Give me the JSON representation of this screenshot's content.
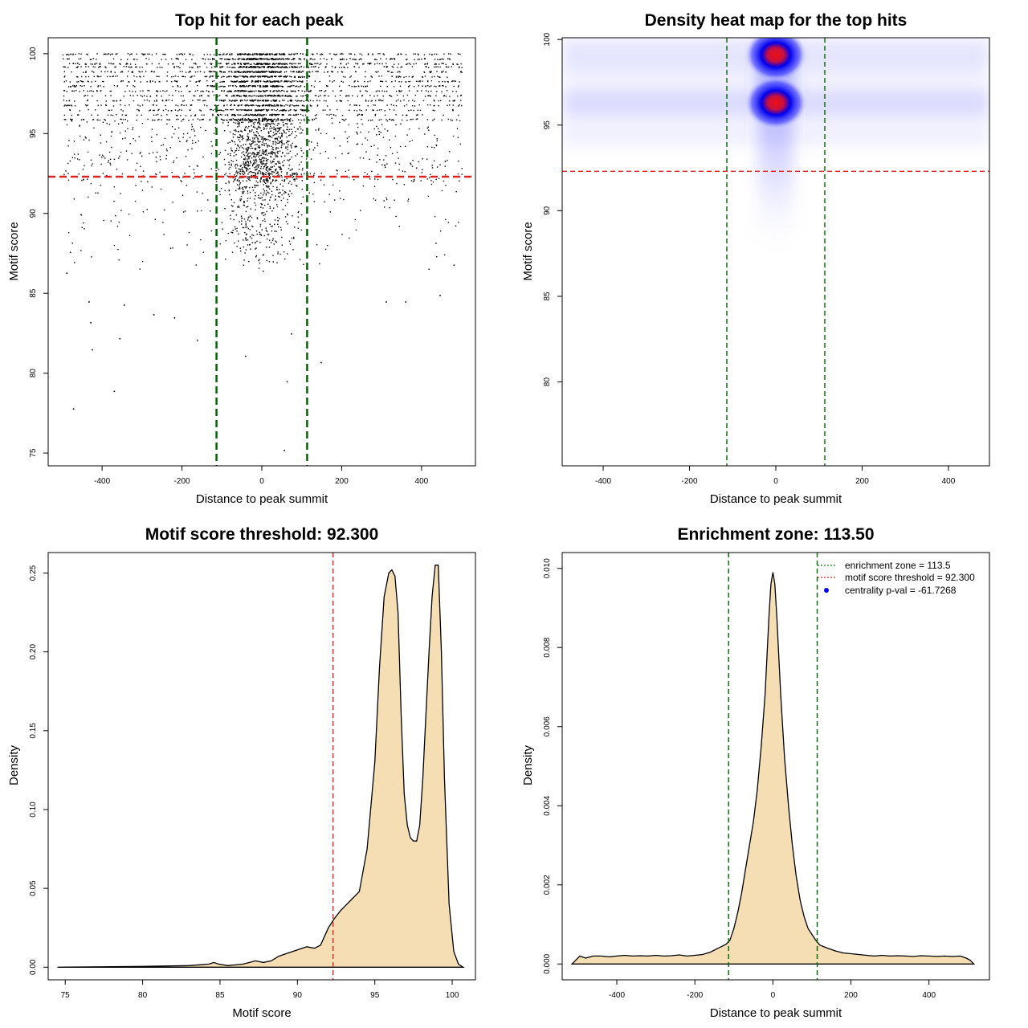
{
  "colors": {
    "vline": "#006400",
    "threshold": "#dd2222",
    "fill": "#f5deb3",
    "heat_low": "#ffffff",
    "heat_mid": "#0000ee",
    "heat_high": "#ee0000"
  },
  "chart_data": [
    {
      "id": "scatter",
      "type": "scatter",
      "title": "Top hit for each peak",
      "xlabel": "Distance to peak summit",
      "ylabel": "Motif score",
      "xlim": [
        -535,
        535
      ],
      "ylim": [
        74.2,
        101.0
      ],
      "xticks": [
        -400,
        -200,
        0,
        200,
        400
      ],
      "yticks": [
        75,
        80,
        85,
        90,
        95,
        100
      ],
      "vlines": [
        -113.5,
        113.5
      ],
      "hline": 92.3,
      "x_range": [
        -500,
        500
      ],
      "discrete_score_rows": [
        100,
        99.7,
        99.4,
        99.2,
        98.9,
        98.6,
        98.3,
        98.0,
        97.7,
        97.4,
        97.1,
        96.8,
        96.5,
        96.2,
        95.9
      ],
      "outlier_points": [
        {
          "x": -473,
          "y": 77.8
        },
        {
          "x": -371,
          "y": 78.9
        },
        {
          "x": 55,
          "y": 75.2
        },
        {
          "x": 62,
          "y": 79.5
        },
        {
          "x": -426,
          "y": 81.5
        },
        {
          "x": -357,
          "y": 82.2
        },
        {
          "x": -163,
          "y": 82.1
        },
        {
          "x": 73,
          "y": 82.5
        },
        {
          "x": 147,
          "y": 80.7
        },
        {
          "x": -42,
          "y": 81.1
        },
        {
          "x": -434,
          "y": 84.5
        },
        {
          "x": -346,
          "y": 84.3
        },
        {
          "x": -220,
          "y": 83.5
        },
        {
          "x": 310,
          "y": 84.5
        },
        {
          "x": 359,
          "y": 84.5
        },
        {
          "x": 445,
          "y": 84.9
        },
        {
          "x": -430,
          "y": 83.2
        },
        {
          "x": -272,
          "y": 83.7
        },
        {
          "x": -481,
          "y": 87.6
        },
        {
          "x": -490,
          "y": 86.3
        },
        {
          "x": 480,
          "y": 86.8
        }
      ]
    },
    {
      "id": "heatmap",
      "type": "heatmap",
      "title": "Density heat map for the top hits",
      "xlabel": "Distance to peak summit",
      "ylabel": "Motif score",
      "xlim": [
        -495,
        495
      ],
      "ylim": [
        75.1,
        100.1
      ],
      "xticks": [
        -400,
        -200,
        0,
        200,
        400
      ],
      "yticks": [
        80,
        85,
        90,
        95,
        100
      ],
      "vlines": [
        -113.5,
        113.5
      ],
      "hline": 92.3,
      "hotspots": [
        {
          "x": 0,
          "y": 99.1
        },
        {
          "x": 0,
          "y": 96.3
        }
      ]
    },
    {
      "id": "score-density",
      "type": "area",
      "title": "Motif score threshold: 92.300",
      "xlabel": "Motif score",
      "ylabel": "Density",
      "xlim": [
        73.9,
        101.5
      ],
      "ylim": [
        -0.008,
        0.263
      ],
      "xticks": [
        75,
        80,
        85,
        90,
        95,
        100
      ],
      "yticks": [
        0.0,
        0.05,
        0.1,
        0.15,
        0.2,
        0.25
      ],
      "ytick_labels": [
        "0.00",
        "0.05",
        "0.10",
        "0.15",
        "0.20",
        "0.25"
      ],
      "vline": 92.3,
      "x": [
        74.5,
        80,
        83,
        84.3,
        84.6,
        84.9,
        85.5,
        86.5,
        87.3,
        87.8,
        88.3,
        88.8,
        89.4,
        90.0,
        90.6,
        91.1,
        91.5,
        92.0,
        92.4,
        92.8,
        93.2,
        93.6,
        94.0,
        94.5,
        95.0,
        95.3,
        95.6,
        95.9,
        96.1,
        96.3,
        96.5,
        96.7,
        96.9,
        97.1,
        97.3,
        97.5,
        97.7,
        97.9,
        98.1,
        98.3,
        98.5,
        98.7,
        98.9,
        99.1,
        99.3,
        99.5,
        99.8,
        100.1,
        100.4,
        100.7
      ],
      "y": [
        0.0,
        0.0005,
        0.001,
        0.002,
        0.003,
        0.002,
        0.001,
        0.002,
        0.004,
        0.003,
        0.004,
        0.007,
        0.009,
        0.011,
        0.013,
        0.012,
        0.014,
        0.025,
        0.031,
        0.036,
        0.04,
        0.044,
        0.048,
        0.075,
        0.13,
        0.19,
        0.235,
        0.25,
        0.252,
        0.248,
        0.225,
        0.16,
        0.11,
        0.09,
        0.082,
        0.08,
        0.08,
        0.09,
        0.12,
        0.16,
        0.2,
        0.235,
        0.255,
        0.255,
        0.2,
        0.12,
        0.04,
        0.01,
        0.002,
        0.0
      ]
    },
    {
      "id": "position-density",
      "type": "area",
      "title": "Enrichment zone: 113.50",
      "xlabel": "Distance to peak summit",
      "ylabel": "Density",
      "xlim": [
        -540,
        555
      ],
      "ylim": [
        -0.0004,
        0.0104
      ],
      "xticks": [
        -400,
        -200,
        0,
        200,
        400
      ],
      "yticks": [
        0.0,
        0.002,
        0.004,
        0.006,
        0.008,
        0.01
      ],
      "ytick_labels": [
        "0.000",
        "0.002",
        "0.004",
        "0.006",
        "0.008",
        "0.010"
      ],
      "vlines": [
        -113.5,
        113.5
      ],
      "x": [
        -515,
        -505,
        -495,
        -480,
        -460,
        -440,
        -420,
        -400,
        -380,
        -360,
        -340,
        -320,
        -300,
        -280,
        -260,
        -240,
        -220,
        -200,
        -180,
        -160,
        -140,
        -120,
        -110,
        -100,
        -90,
        -80,
        -70,
        -60,
        -50,
        -40,
        -30,
        -20,
        -10,
        -5,
        0,
        5,
        10,
        20,
        30,
        40,
        50,
        60,
        70,
        80,
        90,
        100,
        110,
        120,
        140,
        160,
        180,
        200,
        220,
        240,
        260,
        280,
        300,
        320,
        340,
        360,
        380,
        400,
        420,
        440,
        460,
        480,
        495,
        505,
        515
      ],
      "y": [
        0.0,
        0.0001,
        0.0002,
        0.00015,
        0.0002,
        0.0002,
        0.00018,
        0.0002,
        0.00022,
        0.0002,
        0.00021,
        0.0002,
        0.00022,
        0.0002,
        0.00021,
        0.00023,
        0.0002,
        0.00022,
        0.00024,
        0.0003,
        0.0004,
        0.0005,
        0.0006,
        0.0009,
        0.0013,
        0.0018,
        0.0024,
        0.003,
        0.0036,
        0.0044,
        0.0055,
        0.0068,
        0.0088,
        0.0096,
        0.0099,
        0.0096,
        0.0088,
        0.0068,
        0.0052,
        0.004,
        0.003,
        0.0022,
        0.0016,
        0.0012,
        0.0009,
        0.00075,
        0.0006,
        0.00048,
        0.0004,
        0.00033,
        0.00028,
        0.00026,
        0.00024,
        0.00022,
        0.0002,
        0.00022,
        0.0002,
        0.00021,
        0.0002,
        0.00019,
        0.00021,
        0.0002,
        0.00019,
        0.0002,
        0.00019,
        0.0002,
        0.00015,
        0.0001,
        0.0
      ],
      "legend": [
        {
          "kind": "line",
          "color": "#008800",
          "text": "enrichment zone = 113.5"
        },
        {
          "kind": "line",
          "color": "#dd2222",
          "text": "motif score threshold = 92.300"
        },
        {
          "kind": "dot",
          "color": "#0000ee",
          "text": "centrality p-val = -61.7268"
        }
      ]
    }
  ]
}
